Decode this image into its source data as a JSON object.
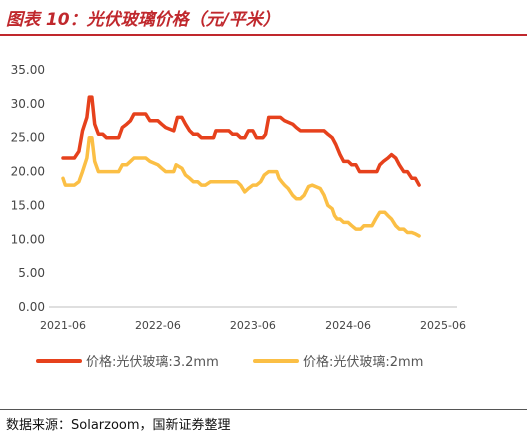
{
  "header": {
    "title": "图表 10：光伏玻璃价格（元/平米）"
  },
  "footer": {
    "source": "数据来源：Solarzoom，国新证券整理"
  },
  "colors": {
    "series_32mm": "#e6411c",
    "series_2mm": "#fbbf45",
    "title": "#c0282d"
  },
  "chart_data": {
    "type": "line",
    "title": "",
    "xlabel": "",
    "ylabel": "",
    "x_range": [
      "2021-06",
      "2025-06"
    ],
    "ylim": [
      0,
      35
    ],
    "y_ticks": [
      "0.00",
      "5.00",
      "10.00",
      "15.00",
      "20.00",
      "25.00",
      "30.00",
      "35.00"
    ],
    "x_ticks": [
      "2021-06",
      "2022-06",
      "2023-06",
      "2024-06",
      "2025-06"
    ],
    "grid": false,
    "legend": "bottom",
    "series": [
      {
        "name": "价格:光伏玻璃:3.2mm",
        "points": [
          [
            "2021-06-01",
            22.0
          ],
          [
            "2021-07-15",
            22.0
          ],
          [
            "2021-08-01",
            23.0
          ],
          [
            "2021-08-15",
            26.0
          ],
          [
            "2021-09-01",
            28.0
          ],
          [
            "2021-09-10",
            31.0
          ],
          [
            "2021-09-20",
            31.0
          ],
          [
            "2021-10-01",
            27.0
          ],
          [
            "2021-10-15",
            25.5
          ],
          [
            "2021-11-01",
            25.5
          ],
          [
            "2021-11-15",
            25.0
          ],
          [
            "2021-12-01",
            25.0
          ],
          [
            "2022-01-01",
            25.0
          ],
          [
            "2022-01-15",
            26.5
          ],
          [
            "2022-02-01",
            27.0
          ],
          [
            "2022-02-15",
            27.5
          ],
          [
            "2022-03-01",
            28.5
          ],
          [
            "2022-04-15",
            28.5
          ],
          [
            "2022-05-01",
            27.5
          ],
          [
            "2022-06-01",
            27.5
          ],
          [
            "2022-06-15",
            27.0
          ],
          [
            "2022-07-01",
            26.5
          ],
          [
            "2022-08-01",
            26.0
          ],
          [
            "2022-08-15",
            28.0
          ],
          [
            "2022-09-01",
            28.0
          ],
          [
            "2022-09-15",
            27.0
          ],
          [
            "2022-10-01",
            26.0
          ],
          [
            "2022-10-15",
            25.5
          ],
          [
            "2022-11-01",
            25.5
          ],
          [
            "2022-11-15",
            25.0
          ],
          [
            "2022-12-01",
            25.0
          ],
          [
            "2023-01-01",
            25.0
          ],
          [
            "2023-01-10",
            26.0
          ],
          [
            "2023-03-01",
            26.0
          ],
          [
            "2023-03-15",
            25.5
          ],
          [
            "2023-04-01",
            25.5
          ],
          [
            "2023-04-15",
            25.0
          ],
          [
            "2023-05-01",
            25.0
          ],
          [
            "2023-05-15",
            26.0
          ],
          [
            "2023-06-01",
            26.0
          ],
          [
            "2023-06-15",
            25.0
          ],
          [
            "2023-07-10",
            25.0
          ],
          [
            "2023-07-20",
            25.5
          ],
          [
            "2023-08-01",
            28.0
          ],
          [
            "2023-09-15",
            28.0
          ],
          [
            "2023-10-01",
            27.5
          ],
          [
            "2023-11-01",
            27.0
          ],
          [
            "2023-11-15",
            26.5
          ],
          [
            "2023-12-01",
            26.0
          ],
          [
            "2024-03-01",
            26.0
          ],
          [
            "2024-03-15",
            25.5
          ],
          [
            "2024-04-01",
            25.0
          ],
          [
            "2024-04-15",
            24.0
          ],
          [
            "2024-05-01",
            22.5
          ],
          [
            "2024-05-15",
            21.5
          ],
          [
            "2024-06-01",
            21.5
          ],
          [
            "2024-06-15",
            21.0
          ],
          [
            "2024-07-01",
            21.0
          ],
          [
            "2024-07-15",
            20.0
          ],
          [
            "2024-09-20",
            20.0
          ],
          [
            "2024-10-01",
            21.0
          ],
          [
            "2024-10-15",
            21.5
          ],
          [
            "2024-11-01",
            22.0
          ],
          [
            "2024-11-15",
            22.5
          ],
          [
            "2024-12-01",
            22.0
          ],
          [
            "2024-12-15",
            21.0
          ],
          [
            "2025-01-01",
            20.0
          ],
          [
            "2025-01-15",
            20.0
          ],
          [
            "2025-02-01",
            19.0
          ],
          [
            "2025-02-15",
            19.0
          ],
          [
            "2025-03-01",
            18.0
          ]
        ]
      },
      {
        "name": "价格:光伏玻璃:2mm",
        "points": [
          [
            "2021-06-01",
            19.0
          ],
          [
            "2021-06-10",
            18.0
          ],
          [
            "2021-07-15",
            18.0
          ],
          [
            "2021-08-01",
            18.5
          ],
          [
            "2021-08-15",
            20.0
          ],
          [
            "2021-09-01",
            22.0
          ],
          [
            "2021-09-10",
            25.0
          ],
          [
            "2021-09-20",
            25.0
          ],
          [
            "2021-10-01",
            21.5
          ],
          [
            "2021-10-15",
            20.0
          ],
          [
            "2021-11-01",
            20.0
          ],
          [
            "2021-12-01",
            20.0
          ],
          [
            "2022-01-01",
            20.0
          ],
          [
            "2022-01-15",
            21.0
          ],
          [
            "2022-02-01",
            21.0
          ],
          [
            "2022-02-15",
            21.5
          ],
          [
            "2022-03-01",
            22.0
          ],
          [
            "2022-04-15",
            22.0
          ],
          [
            "2022-05-01",
            21.5
          ],
          [
            "2022-06-01",
            21.0
          ],
          [
            "2022-06-15",
            20.5
          ],
          [
            "2022-07-01",
            20.0
          ],
          [
            "2022-08-01",
            20.0
          ],
          [
            "2022-08-10",
            21.0
          ],
          [
            "2022-09-01",
            20.5
          ],
          [
            "2022-09-15",
            19.5
          ],
          [
            "2022-10-01",
            19.0
          ],
          [
            "2022-10-15",
            18.5
          ],
          [
            "2022-11-01",
            18.5
          ],
          [
            "2022-11-15",
            18.0
          ],
          [
            "2022-12-01",
            18.0
          ],
          [
            "2022-12-20",
            18.5
          ],
          [
            "2023-04-01",
            18.5
          ],
          [
            "2023-04-15",
            18.0
          ],
          [
            "2023-05-01",
            17.0
          ],
          [
            "2023-05-15",
            17.5
          ],
          [
            "2023-06-01",
            18.0
          ],
          [
            "2023-06-15",
            18.0
          ],
          [
            "2023-07-01",
            18.5
          ],
          [
            "2023-07-15",
            19.5
          ],
          [
            "2023-08-01",
            20.0
          ],
          [
            "2023-09-01",
            20.0
          ],
          [
            "2023-09-10",
            19.0
          ],
          [
            "2023-09-20",
            18.5
          ],
          [
            "2023-10-01",
            18.0
          ],
          [
            "2023-10-15",
            17.5
          ],
          [
            "2023-11-01",
            16.5
          ],
          [
            "2023-11-15",
            16.0
          ],
          [
            "2023-12-01",
            16.0
          ],
          [
            "2023-12-15",
            16.5
          ],
          [
            "2024-01-01",
            17.8
          ],
          [
            "2024-01-15",
            18.0
          ],
          [
            "2024-02-15",
            17.5
          ],
          [
            "2024-03-01",
            16.5
          ],
          [
            "2024-03-15",
            15.0
          ],
          [
            "2024-04-01",
            14.5
          ],
          [
            "2024-04-10",
            13.5
          ],
          [
            "2024-04-20",
            13.0
          ],
          [
            "2024-05-01",
            13.0
          ],
          [
            "2024-05-15",
            12.5
          ],
          [
            "2024-06-01",
            12.5
          ],
          [
            "2024-06-15",
            12.0
          ],
          [
            "2024-07-01",
            11.5
          ],
          [
            "2024-07-20",
            11.5
          ],
          [
            "2024-08-01",
            12.0
          ],
          [
            "2024-09-01",
            12.0
          ],
          [
            "2024-09-15",
            13.0
          ],
          [
            "2024-10-01",
            14.0
          ],
          [
            "2024-10-20",
            14.0
          ],
          [
            "2024-11-01",
            13.5
          ],
          [
            "2024-11-15",
            13.0
          ],
          [
            "2024-12-01",
            12.0
          ],
          [
            "2024-12-15",
            11.5
          ],
          [
            "2025-01-01",
            11.5
          ],
          [
            "2025-01-15",
            11.0
          ],
          [
            "2025-02-01",
            11.0
          ],
          [
            "2025-02-15",
            10.8
          ],
          [
            "2025-03-01",
            10.5
          ]
        ]
      }
    ]
  }
}
